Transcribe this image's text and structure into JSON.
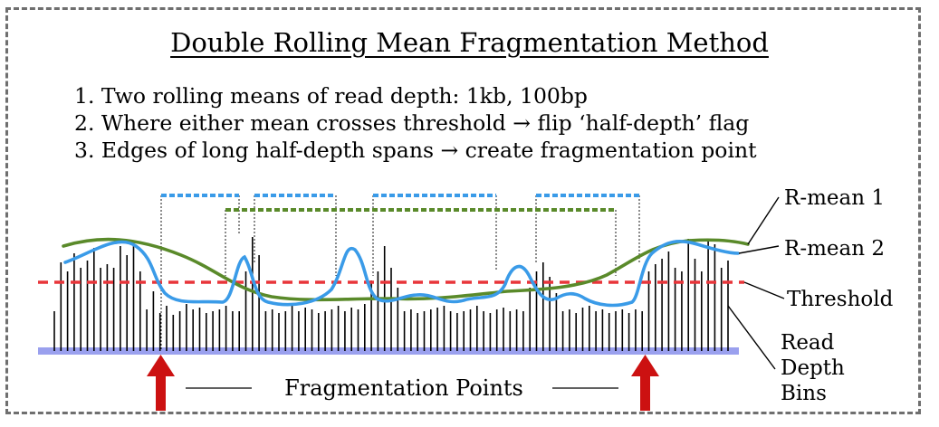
{
  "title": "Double Rolling Mean Fragmentation Method",
  "steps": [
    "1. Two rolling means of read depth: 1kb, 100bp",
    "2. Where either mean crosses threshold → flip ‘half-depth’ flag",
    "3. Edges of long half-depth spans → create fragmentation point"
  ],
  "labels": {
    "rmean1": "R-mean 1",
    "rmean2": "R-mean 2",
    "threshold": "Threshold",
    "bins_line1": "Read",
    "bins_line2": "Depth",
    "bins_line3": "Bins",
    "fragmentation_points": "Fragmentation Points"
  },
  "colors": {
    "rmean1": "#5a8a2a",
    "rmean2": "#3a9be8",
    "threshold": "#e8353a",
    "baseline": "#9aa0ee",
    "arrow": "#cc1111",
    "frame": "#6f6f6f"
  }
}
